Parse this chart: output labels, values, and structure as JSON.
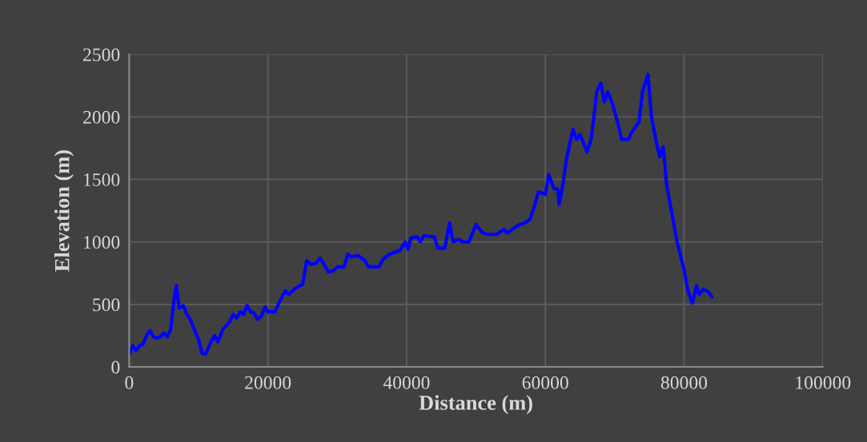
{
  "chart_data": {
    "type": "line",
    "xlabel": "Distance (m)",
    "ylabel": "Elevation (m)",
    "xlim": [
      0,
      100000
    ],
    "xticks": [
      0,
      20000,
      40000,
      60000,
      80000,
      100000
    ],
    "ylim": [
      0,
      2500
    ],
    "yticks": [
      0,
      500,
      1000,
      1500,
      2000,
      2500
    ],
    "grid": true,
    "marker": "none",
    "line_style": "solid",
    "series": [
      {
        "color": "#0000ff",
        "x": [
          0,
          500,
          1000,
          1500,
          2000,
          2500,
          3000,
          3500,
          4000,
          4500,
          5000,
          5500,
          6000,
          6500,
          6800,
          7200,
          7800,
          8300,
          8800,
          9300,
          10000,
          10500,
          11000,
          11800,
          12300,
          12800,
          13500,
          14000,
          14500,
          15000,
          15500,
          16000,
          16500,
          17000,
          17500,
          18000,
          18500,
          19000,
          19600,
          20000,
          21000,
          21500,
          22500,
          23000,
          24000,
          25000,
          25600,
          26200,
          27000,
          27500,
          28000,
          28700,
          29500,
          30000,
          31000,
          31500,
          32000,
          33000,
          34000,
          34500,
          36000,
          36600,
          37500,
          39000,
          39800,
          40200,
          40600,
          41500,
          42000,
          42500,
          44000,
          44500,
          45500,
          46200,
          46700,
          47500,
          48000,
          49000,
          50000,
          50800,
          51500,
          53000,
          54000,
          54500,
          56000,
          57000,
          57800,
          58500,
          59000,
          60000,
          60500,
          61200,
          61800,
          62000,
          62600,
          63000,
          63500,
          64000,
          64500,
          65000,
          66000,
          66600,
          67000,
          67400,
          68000,
          68500,
          69000,
          69700,
          70500,
          71000,
          72000,
          72500,
          73500,
          74000,
          74800,
          75300,
          76000,
          76500,
          77000,
          77500,
          78000,
          79000,
          80000,
          80500,
          81200,
          81800,
          82200,
          82800,
          83500,
          84000
        ],
        "values": [
          100,
          170,
          130,
          170,
          180,
          250,
          290,
          240,
          230,
          240,
          270,
          240,
          300,
          550,
          650,
          470,
          490,
          420,
          380,
          310,
          220,
          110,
          100,
          200,
          250,
          200,
          300,
          330,
          360,
          420,
          390,
          440,
          420,
          490,
          440,
          430,
          380,
          400,
          480,
          440,
          440,
          500,
          610,
          580,
          630,
          660,
          850,
          820,
          830,
          870,
          830,
          760,
          770,
          800,
          800,
          900,
          880,
          890,
          850,
          800,
          800,
          860,
          900,
          930,
          1000,
          940,
          1030,
          1040,
          1000,
          1050,
          1040,
          950,
          950,
          1150,
          1000,
          1020,
          1000,
          1000,
          1140,
          1080,
          1060,
          1060,
          1100,
          1070,
          1130,
          1150,
          1180,
          1300,
          1400,
          1380,
          1540,
          1430,
          1420,
          1300,
          1480,
          1650,
          1780,
          1900,
          1820,
          1860,
          1720,
          1820,
          2000,
          2200,
          2270,
          2120,
          2200,
          2100,
          1940,
          1820,
          1820,
          1880,
          1960,
          2200,
          2340,
          2000,
          1800,
          1680,
          1760,
          1450,
          1300,
          1000,
          780,
          620,
          510,
          650,
          580,
          620,
          600,
          560
        ]
      }
    ]
  }
}
